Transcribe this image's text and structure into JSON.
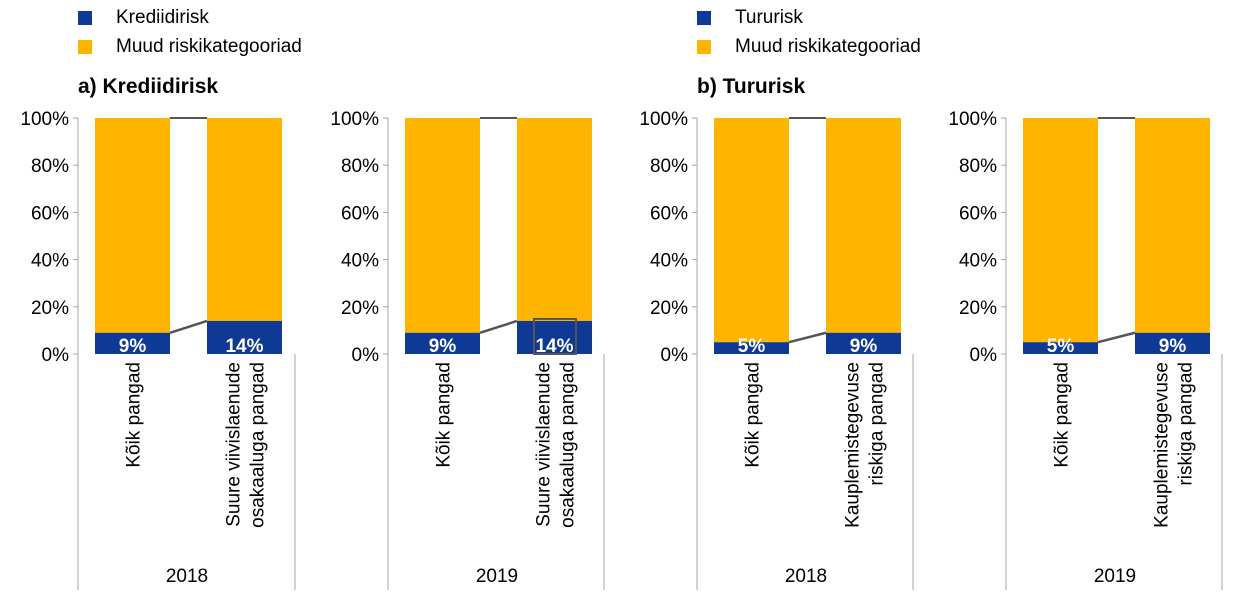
{
  "colors": {
    "primary": "#0e3a96",
    "other": "#ffb400",
    "connector": "#555555",
    "axis": "#a6a6a6"
  },
  "legends": [
    {
      "items": [
        {
          "label": "Krediidirisk",
          "color": "#0e3a96"
        },
        {
          "label": "Muud riskikategooriad",
          "color": "#ffb400"
        }
      ]
    },
    {
      "items": [
        {
          "label": "Tururisk",
          "color": "#0e3a96"
        },
        {
          "label": "Muud riskikategooriad",
          "color": "#ffb400"
        }
      ]
    }
  ],
  "panels": [
    {
      "title": "a) Krediidirisk"
    },
    {
      "title": "b) Tururisk"
    }
  ],
  "chart_data": [
    {
      "type": "bar",
      "stacked": true,
      "panel": "a) Krediidirisk",
      "year": "2018",
      "categories": [
        "Kõik pangad",
        "Suure viivislaenude osakaaluga pangad"
      ],
      "series": [
        {
          "name": "Krediidirisk",
          "values": [
            9,
            14
          ],
          "labels": [
            "9%",
            "14%"
          ]
        },
        {
          "name": "Muud riskikategooriad",
          "values": [
            91,
            86
          ]
        }
      ],
      "ylim": [
        0,
        100
      ],
      "yticks": [
        "0%",
        "20%",
        "40%",
        "60%",
        "80%",
        "100%"
      ],
      "highlight": null
    },
    {
      "type": "bar",
      "stacked": true,
      "panel": "a) Krediidirisk",
      "year": "2019",
      "categories": [
        "Kõik pangad",
        "Suure viivislaenude osakaaluga pangad"
      ],
      "series": [
        {
          "name": "Krediidirisk",
          "values": [
            9,
            14
          ],
          "labels": [
            "9%",
            "14%"
          ]
        },
        {
          "name": "Muud riskikategooriad",
          "values": [
            91,
            86
          ]
        }
      ],
      "ylim": [
        0,
        100
      ],
      "yticks": [
        "0%",
        "20%",
        "40%",
        "60%",
        "80%",
        "100%"
      ],
      "highlight": 1
    },
    {
      "type": "bar",
      "stacked": true,
      "panel": "b) Tururisk",
      "year": "2018",
      "categories": [
        "Kõik pangad",
        "Kauplemistegevuse riskiga pangad"
      ],
      "series": [
        {
          "name": "Tururisk",
          "values": [
            5,
            9
          ],
          "labels": [
            "5%",
            "9%"
          ]
        },
        {
          "name": "Muud riskikategooriad",
          "values": [
            95,
            91
          ]
        }
      ],
      "ylim": [
        0,
        100
      ],
      "yticks": [
        "0%",
        "20%",
        "40%",
        "60%",
        "80%",
        "100%"
      ],
      "highlight": null
    },
    {
      "type": "bar",
      "stacked": true,
      "panel": "b) Tururisk",
      "year": "2019",
      "categories": [
        "Kõik pangad",
        "Kauplemistegevuse riskiga pangad"
      ],
      "series": [
        {
          "name": "Tururisk",
          "values": [
            5,
            9
          ],
          "labels": [
            "5%",
            "9%"
          ]
        },
        {
          "name": "Muud riskikategooriad",
          "values": [
            95,
            91
          ]
        }
      ],
      "ylim": [
        0,
        100
      ],
      "yticks": [
        "0%",
        "20%",
        "40%",
        "60%",
        "80%",
        "100%"
      ],
      "highlight": null
    }
  ],
  "category_label_lines": [
    [
      [
        "Kõik pangad"
      ],
      [
        "Suure viivislaenude",
        "osakaaluga pangad"
      ]
    ],
    [
      [
        "Kõik pangad"
      ],
      [
        "Suure viivislaenude",
        "osakaaluga pangad"
      ]
    ],
    [
      [
        "Kõik pangad"
      ],
      [
        "Kauplemistegevuse",
        "riskiga pangad"
      ]
    ],
    [
      [
        "Kõik pangad"
      ],
      [
        "Kauplemistegevuse",
        "riskiga pangad"
      ]
    ]
  ]
}
